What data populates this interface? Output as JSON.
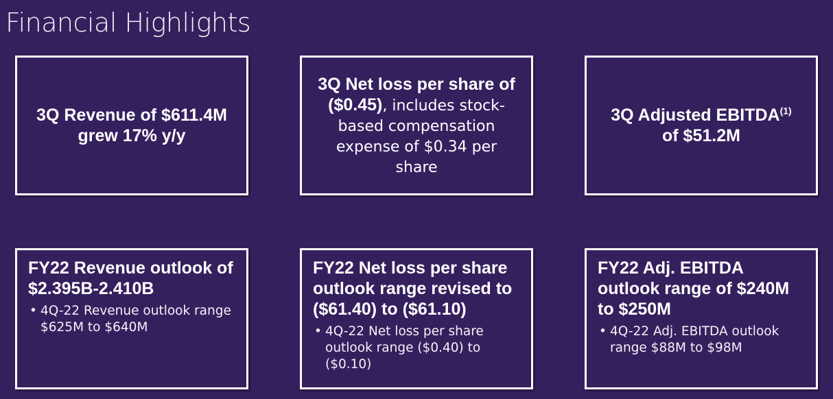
{
  "page": {
    "title": "Financial Highlights"
  },
  "cards": {
    "revenue_3q": {
      "line1": "3Q Revenue of $611.4M",
      "line2": "grew 17% y/y"
    },
    "net_loss_3q": {
      "bold": "3Q Net loss per share of ($0.45)",
      "regular": ", includes stock-based compensation expense of $0.34 per share"
    },
    "ebitda_3q": {
      "line1": "3Q Adjusted EBITDA",
      "footnote": "(1)",
      "line2": "of $51.2M"
    },
    "fy22_revenue": {
      "heading": "FY22 Revenue outlook of $2.395B-2.410B",
      "bullet_marker": "•",
      "bullet": "4Q-22 Revenue outlook range $625M to $640M"
    },
    "fy22_net_loss": {
      "heading": "FY22 Net loss per share outlook range revised to ($61.40) to ($61.10)",
      "bullet_marker": "•",
      "bullet": "4Q-22 Net loss per share outlook range ($0.40) to ($0.10)"
    },
    "fy22_ebitda": {
      "heading": "FY22 Adj. EBITDA outlook range of $240M to $250M",
      "bullet_marker": "•",
      "bullet": "4Q-22 Adj. EBITDA outlook range $88M to $98M"
    }
  },
  "colors": {
    "background": "#35205e",
    "border": "#ffffff",
    "text": "#ffffff"
  }
}
